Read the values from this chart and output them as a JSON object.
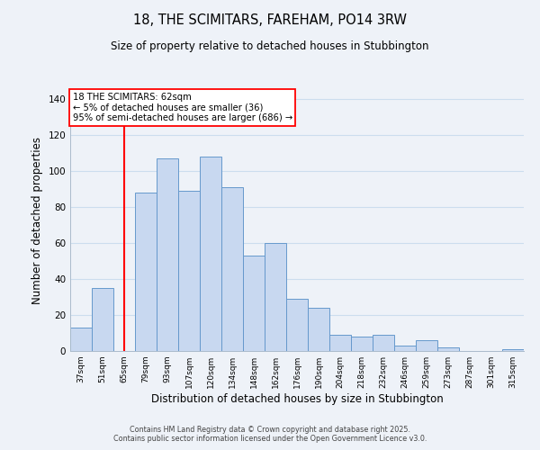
{
  "title_line1": "18, THE SCIMITARS, FAREHAM, PO14 3RW",
  "title_line2": "Size of property relative to detached houses in Stubbington",
  "xlabel": "Distribution of detached houses by size in Stubbington",
  "ylabel": "Number of detached properties",
  "bar_labels": [
    "37sqm",
    "51sqm",
    "65sqm",
    "79sqm",
    "93sqm",
    "107sqm",
    "120sqm",
    "134sqm",
    "148sqm",
    "162sqm",
    "176sqm",
    "190sqm",
    "204sqm",
    "218sqm",
    "232sqm",
    "246sqm",
    "259sqm",
    "273sqm",
    "287sqm",
    "301sqm",
    "315sqm"
  ],
  "bar_values": [
    13,
    35,
    0,
    88,
    107,
    89,
    108,
    91,
    53,
    60,
    29,
    24,
    9,
    8,
    9,
    3,
    6,
    2,
    0,
    0,
    1
  ],
  "bar_color": "#c8d8f0",
  "bar_edge_color": "#6699cc",
  "vline_x_index": 2,
  "vline_color": "red",
  "annotation_title": "18 THE SCIMITARS: 62sqm",
  "annotation_line1": "← 5% of detached houses are smaller (36)",
  "annotation_line2": "95% of semi-detached houses are larger (686) →",
  "annotation_box_color": "white",
  "annotation_box_edge": "red",
  "ylim": [
    0,
    145
  ],
  "yticks": [
    0,
    20,
    40,
    60,
    80,
    100,
    120,
    140
  ],
  "grid_color": "#ccddee",
  "footer_line1": "Contains HM Land Registry data © Crown copyright and database right 2025.",
  "footer_line2": "Contains public sector information licensed under the Open Government Licence v3.0.",
  "background_color": "#eef2f8"
}
